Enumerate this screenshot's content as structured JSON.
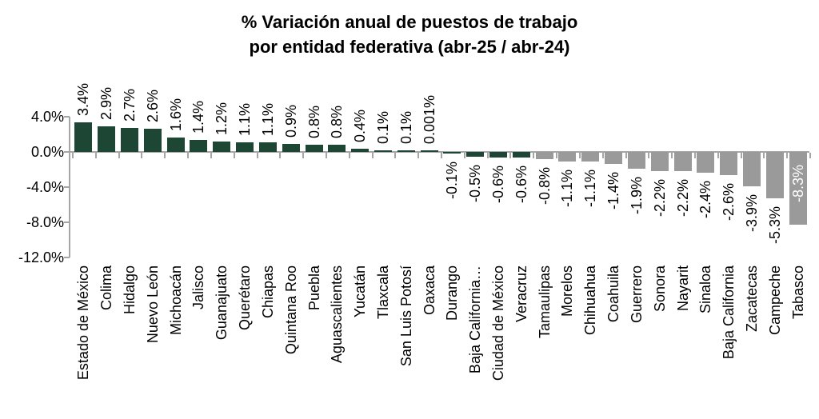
{
  "title": {
    "line1": "% Variación anual de puestos de trabajo",
    "line2": "por entidad federativa (abr-25 / abr-24)"
  },
  "chart_data": {
    "type": "bar",
    "title": "% Variación anual de puestos de trabajo por entidad federativa (abr-25 / abr-24)",
    "xlabel": "",
    "ylabel": "",
    "categories": [
      "Estado de México",
      "Colima",
      "Hidalgo",
      "Nuevo León",
      "Michoacán",
      "Jalisco",
      "Guanajuato",
      "Querétaro",
      "Chiapas",
      "Quintana Roo",
      "Puebla",
      "Aguascalientes",
      "Yucatán",
      "Tlaxcala",
      "San Luis Potosí",
      "Oaxaca",
      "Durango",
      "Baja California…",
      "Ciudad de México",
      "Veracruz",
      "Tamaulipas",
      "Morelos",
      "Chihuahua",
      "Coahuila",
      "Guerrero",
      "Sonora",
      "Nayarit",
      "Sinaloa",
      "Baja California",
      "Zacatecas",
      "Campeche",
      "Tabasco"
    ],
    "values": [
      3.4,
      2.9,
      2.7,
      2.6,
      1.6,
      1.4,
      1.2,
      1.1,
      1.1,
      0.9,
      0.8,
      0.8,
      0.4,
      0.1,
      0.1,
      0.001,
      -0.1,
      -0.5,
      -0.6,
      -0.6,
      -0.8,
      -1.1,
      -1.1,
      -1.4,
      -1.9,
      -2.2,
      -2.2,
      -2.4,
      -2.6,
      -3.9,
      -5.3,
      -8.3
    ],
    "value_labels": [
      "3.4%",
      "2.9%",
      "2.7%",
      "2.6%",
      "1.6%",
      "1.4%",
      "1.2%",
      "1.1%",
      "1.1%",
      "0.9%",
      "0.8%",
      "0.8%",
      "0.4%",
      "0.1%",
      "0.1%",
      "0.001%",
      "-0.1%",
      "-0.5%",
      "-0.6%",
      "-0.6%",
      "-0.8%",
      "-1.1%",
      "-1.1%",
      "-1.4%",
      "-1.9%",
      "-2.2%",
      "-2.2%",
      "-2.4%",
      "-2.6%",
      "-3.9%",
      "-5.3%",
      "-8.3%"
    ],
    "y_ticks": [
      "4.0%",
      "0.0%",
      "-4.0%",
      "-8.0%",
      "-12.0%"
    ],
    "y_tick_values": [
      4,
      0,
      -4,
      -8,
      -12
    ],
    "ylim": [
      -12,
      4
    ],
    "grid": false,
    "legend": false,
    "colors": {
      "bar_green": "#1e4634",
      "bar_gray": "#9a9a9a",
      "axis": "#a6a6a6",
      "text": "#000000",
      "inside_label_text": "#ffffff"
    },
    "green_bar_count": 20,
    "inside_label_indices": [
      31
    ]
  }
}
